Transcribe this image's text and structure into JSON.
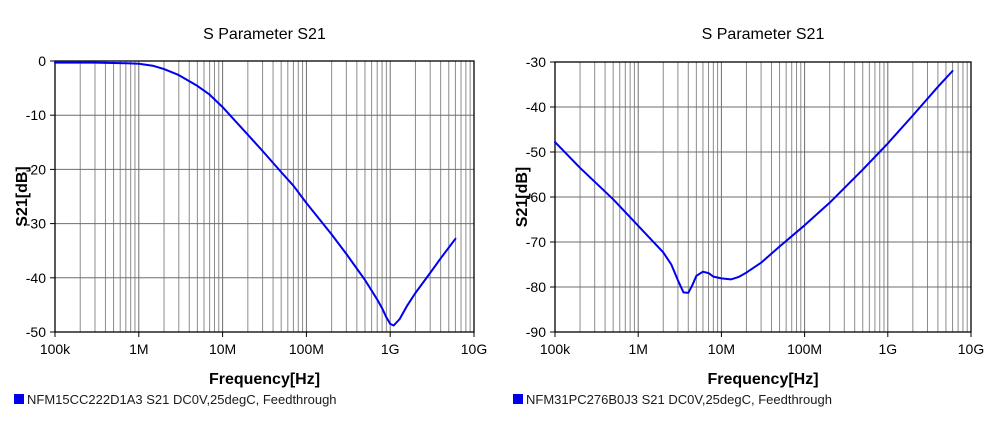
{
  "chart_data": [
    {
      "type": "line",
      "title": "S Parameter S21",
      "xlabel": "Frequency[Hz]",
      "ylabel": "S21[dB]",
      "xscale": "log",
      "xlim": [
        100000,
        10000000000
      ],
      "ylim": [
        -50,
        0
      ],
      "xticks": [
        {
          "value": 100000,
          "label": "100k"
        },
        {
          "value": 1000000,
          "label": "1M"
        },
        {
          "value": 10000000,
          "label": "10M"
        },
        {
          "value": 100000000,
          "label": "100M"
        },
        {
          "value": 1000000000,
          "label": "1G"
        },
        {
          "value": 10000000000,
          "label": "10G"
        }
      ],
      "yticks": [
        {
          "value": 0,
          "label": "0"
        },
        {
          "value": -10,
          "label": "-10"
        },
        {
          "value": -20,
          "label": "-20"
        },
        {
          "value": -30,
          "label": "-30"
        },
        {
          "value": -40,
          "label": "-40"
        },
        {
          "value": -50,
          "label": "-50"
        }
      ],
      "grid": true,
      "legend_position": "bottom-left",
      "series": [
        {
          "name": "NFM15CC222D1A3 S21 DC0V,25degC, Feedthrough",
          "color": "#0000ee",
          "points": [
            [
              100000,
              -0.3
            ],
            [
              300000,
              -0.3
            ],
            [
              700000,
              -0.4
            ],
            [
              1000000,
              -0.5
            ],
            [
              1500000,
              -0.9
            ],
            [
              2000000,
              -1.5
            ],
            [
              3000000,
              -2.6
            ],
            [
              5000000,
              -4.6
            ],
            [
              7000000,
              -6.2
            ],
            [
              10000000,
              -8.5
            ],
            [
              20000000,
              -13.6
            ],
            [
              30000000,
              -16.6
            ],
            [
              50000000,
              -20.5
            ],
            [
              70000000,
              -23.0
            ],
            [
              100000000,
              -26.2
            ],
            [
              200000000,
              -32.0
            ],
            [
              300000000,
              -35.6
            ],
            [
              500000000,
              -40.4
            ],
            [
              700000000,
              -44.0
            ],
            [
              800000000,
              -45.6
            ],
            [
              900000000,
              -47.3
            ],
            [
              1000000000,
              -48.5
            ],
            [
              1100000000,
              -48.8
            ],
            [
              1300000000,
              -47.6
            ],
            [
              1600000000,
              -45.1
            ],
            [
              2000000000,
              -42.8
            ],
            [
              3000000000,
              -39.1
            ],
            [
              4000000000,
              -36.4
            ],
            [
              6000000000,
              -32.8
            ]
          ]
        }
      ]
    },
    {
      "type": "line",
      "title": "S Parameter S21",
      "xlabel": "Frequency[Hz]",
      "ylabel": "S21[dB]",
      "xscale": "log",
      "xlim": [
        100000,
        10000000000
      ],
      "ylim": [
        -90,
        -30
      ],
      "xticks": [
        {
          "value": 100000,
          "label": "100k"
        },
        {
          "value": 1000000,
          "label": "1M"
        },
        {
          "value": 10000000,
          "label": "10M"
        },
        {
          "value": 100000000,
          "label": "100M"
        },
        {
          "value": 1000000000,
          "label": "1G"
        },
        {
          "value": 10000000000,
          "label": "10G"
        }
      ],
      "yticks": [
        {
          "value": -30,
          "label": "-30"
        },
        {
          "value": -40,
          "label": "-40"
        },
        {
          "value": -50,
          "label": "-50"
        },
        {
          "value": -60,
          "label": "-60"
        },
        {
          "value": -70,
          "label": "-70"
        },
        {
          "value": -80,
          "label": "-80"
        },
        {
          "value": -90,
          "label": "-90"
        }
      ],
      "grid": true,
      "legend_position": "bottom-left",
      "series": [
        {
          "name": "NFM31PC276B0J3 S21 DC0V,25degC, Feedthrough",
          "color": "#0000ee",
          "points": [
            [
              100000,
              -47.8
            ],
            [
              200000,
              -53.5
            ],
            [
              500000,
              -60.5
            ],
            [
              1000000,
              -66.4
            ],
            [
              2000000,
              -72.3
            ],
            [
              2500000,
              -75.0
            ],
            [
              3000000,
              -78.5
            ],
            [
              3500000,
              -81.2
            ],
            [
              4000000,
              -81.3
            ],
            [
              4500000,
              -79.5
            ],
            [
              5000000,
              -77.5
            ],
            [
              6000000,
              -76.6
            ],
            [
              7000000,
              -76.9
            ],
            [
              8000000,
              -77.7
            ],
            [
              10000000,
              -78.1
            ],
            [
              13000000,
              -78.3
            ],
            [
              16000000,
              -77.8
            ],
            [
              20000000,
              -76.8
            ],
            [
              30000000,
              -74.6
            ],
            [
              50000000,
              -71.0
            ],
            [
              100000000,
              -66.3
            ],
            [
              200000000,
              -61.3
            ],
            [
              500000000,
              -53.9
            ],
            [
              1000000000,
              -48.1
            ],
            [
              2000000000,
              -41.9
            ],
            [
              4000000000,
              -35.5
            ],
            [
              6000000000,
              -32.0
            ]
          ]
        }
      ]
    }
  ]
}
